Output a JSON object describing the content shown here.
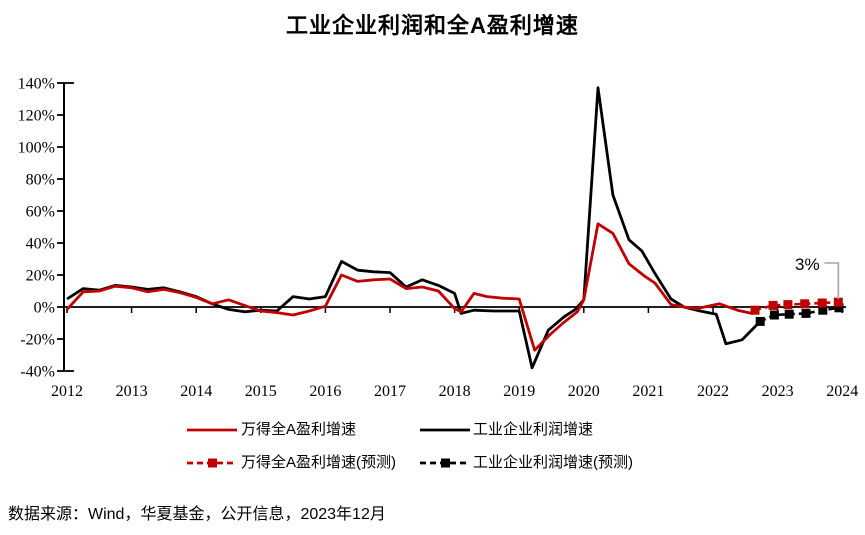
{
  "title": "工业企业利润和全A盈利增速",
  "source_note": "数据来源：Wind，华夏基金，公开信息，2023年12月",
  "colors": {
    "red": "#C00000",
    "black": "#000000",
    "callout_gray": "#A6A6A6"
  },
  "legend": {
    "items": [
      {
        "label": "万得全A盈利增速",
        "color": "#C00000",
        "style": "solid"
      },
      {
        "label": "工业企业利润增速",
        "color": "#000000",
        "style": "solid"
      },
      {
        "label": "万得全A盈利增速(预测)",
        "color": "#C00000",
        "style": "dashed-marker"
      },
      {
        "label": "工业企业利润增速(预测)",
        "color": "#000000",
        "style": "dashed-marker"
      }
    ]
  },
  "chart_data": {
    "type": "line",
    "title": "工业企业利润和全A盈利增速",
    "xlabel": "",
    "ylabel": "",
    "xlim": [
      2012,
      2024.15
    ],
    "ylim": [
      -40,
      140
    ],
    "grid": false,
    "x_ticks": [
      2012,
      2013,
      2014,
      2015,
      2016,
      2017,
      2018,
      2019,
      2020,
      2021,
      2022,
      2023,
      2024
    ],
    "y_tick_values": [
      140,
      120,
      100,
      80,
      60,
      40,
      20,
      0,
      -20,
      -40
    ],
    "y_tick_labels": [
      "140%",
      "120%",
      "100%",
      "80%",
      "60%",
      "40%",
      "20%",
      "0%",
      "-20%",
      "-40%"
    ],
    "annotation": {
      "text": "3%",
      "x": 2023.94,
      "y": 3
    },
    "series": [
      {
        "name": "工业企业利润增速",
        "color": "#000000",
        "style": "solid",
        "marker": "none",
        "points": [
          [
            2012,
            5
          ],
          [
            2012.25,
            11.5
          ],
          [
            2012.5,
            10.5
          ],
          [
            2012.75,
            13.5
          ],
          [
            2013,
            12.5
          ],
          [
            2013.25,
            11
          ],
          [
            2013.5,
            12
          ],
          [
            2013.75,
            9.5
          ],
          [
            2014,
            6.5
          ],
          [
            2014.25,
            2
          ],
          [
            2014.5,
            -1.5
          ],
          [
            2014.75,
            -3
          ],
          [
            2015,
            -2
          ],
          [
            2015.25,
            -2.5
          ],
          [
            2015.5,
            6.5
          ],
          [
            2015.75,
            5
          ],
          [
            2016,
            6.5
          ],
          [
            2016.25,
            28.5
          ],
          [
            2016.5,
            23
          ],
          [
            2016.75,
            22
          ],
          [
            2017,
            21.5
          ],
          [
            2017.25,
            12.5
          ],
          [
            2017.5,
            17
          ],
          [
            2017.75,
            13.5
          ],
          [
            2018,
            8.5
          ],
          [
            2018.1,
            -4
          ],
          [
            2018.3,
            -2
          ],
          [
            2018.6,
            -2.5
          ],
          [
            2019,
            -2.5
          ],
          [
            2019.2,
            -38
          ],
          [
            2019.45,
            -14.5
          ],
          [
            2019.7,
            -6
          ],
          [
            2019.87,
            -1.5
          ],
          [
            2020,
            4.5
          ],
          [
            2020.22,
            137
          ],
          [
            2020.45,
            70
          ],
          [
            2020.7,
            42
          ],
          [
            2020.9,
            35
          ],
          [
            2021.1,
            21
          ],
          [
            2021.35,
            5
          ],
          [
            2021.55,
            0
          ],
          [
            2021.8,
            -2.5
          ],
          [
            2022.05,
            -4.5
          ],
          [
            2022.2,
            -23
          ],
          [
            2022.45,
            -20.5
          ],
          [
            2022.73,
            -9
          ]
        ]
      },
      {
        "name": "万得全A盈利增速",
        "color": "#C00000",
        "style": "solid",
        "marker": "none",
        "points": [
          [
            2012,
            -1.5
          ],
          [
            2012.25,
            9.5
          ],
          [
            2012.5,
            10
          ],
          [
            2012.75,
            13
          ],
          [
            2013,
            12
          ],
          [
            2013.25,
            9.5
          ],
          [
            2013.5,
            11
          ],
          [
            2013.75,
            9
          ],
          [
            2014,
            6
          ],
          [
            2014.25,
            2
          ],
          [
            2014.5,
            4.5
          ],
          [
            2014.75,
            1
          ],
          [
            2015,
            -2.5
          ],
          [
            2015.25,
            -3.5
          ],
          [
            2015.5,
            -5
          ],
          [
            2015.75,
            -2.5
          ],
          [
            2016,
            0.5
          ],
          [
            2016.25,
            20
          ],
          [
            2016.5,
            16
          ],
          [
            2016.75,
            17
          ],
          [
            2017,
            17.5
          ],
          [
            2017.25,
            11.5
          ],
          [
            2017.5,
            12.5
          ],
          [
            2017.75,
            10
          ],
          [
            2018,
            -1
          ],
          [
            2018.1,
            -3
          ],
          [
            2018.3,
            8.5
          ],
          [
            2018.5,
            6.5
          ],
          [
            2018.75,
            5.5
          ],
          [
            2019,
            5
          ],
          [
            2019.24,
            -27
          ],
          [
            2019.47,
            -17.5
          ],
          [
            2019.68,
            -10
          ],
          [
            2019.9,
            -3
          ],
          [
            2020,
            4.5
          ],
          [
            2020.22,
            52
          ],
          [
            2020.45,
            46
          ],
          [
            2020.7,
            27
          ],
          [
            2020.95,
            19
          ],
          [
            2021.1,
            15
          ],
          [
            2021.35,
            1.5
          ],
          [
            2021.55,
            0
          ],
          [
            2021.75,
            -1
          ],
          [
            2021.92,
            0.5
          ],
          [
            2022.1,
            2
          ],
          [
            2022.38,
            -2
          ],
          [
            2022.6,
            -4
          ],
          [
            2022.65,
            -2
          ]
        ]
      },
      {
        "name": "工业企业利润增速(预测)",
        "color": "#000000",
        "style": "dashed",
        "marker": "square",
        "points": [
          [
            2022.73,
            -9
          ],
          [
            2022.95,
            -5
          ],
          [
            2023.18,
            -4.5
          ],
          [
            2023.44,
            -4
          ],
          [
            2023.7,
            -2
          ],
          [
            2023.95,
            -0.5
          ]
        ]
      },
      {
        "name": "万得全A盈利增速(预测)",
        "color": "#C00000",
        "style": "dashed",
        "marker": "square",
        "points": [
          [
            2022.65,
            -2
          ],
          [
            2022.93,
            1
          ],
          [
            2023.16,
            1.5
          ],
          [
            2023.42,
            2
          ],
          [
            2023.69,
            2.5
          ],
          [
            2023.94,
            3
          ]
        ]
      }
    ]
  }
}
